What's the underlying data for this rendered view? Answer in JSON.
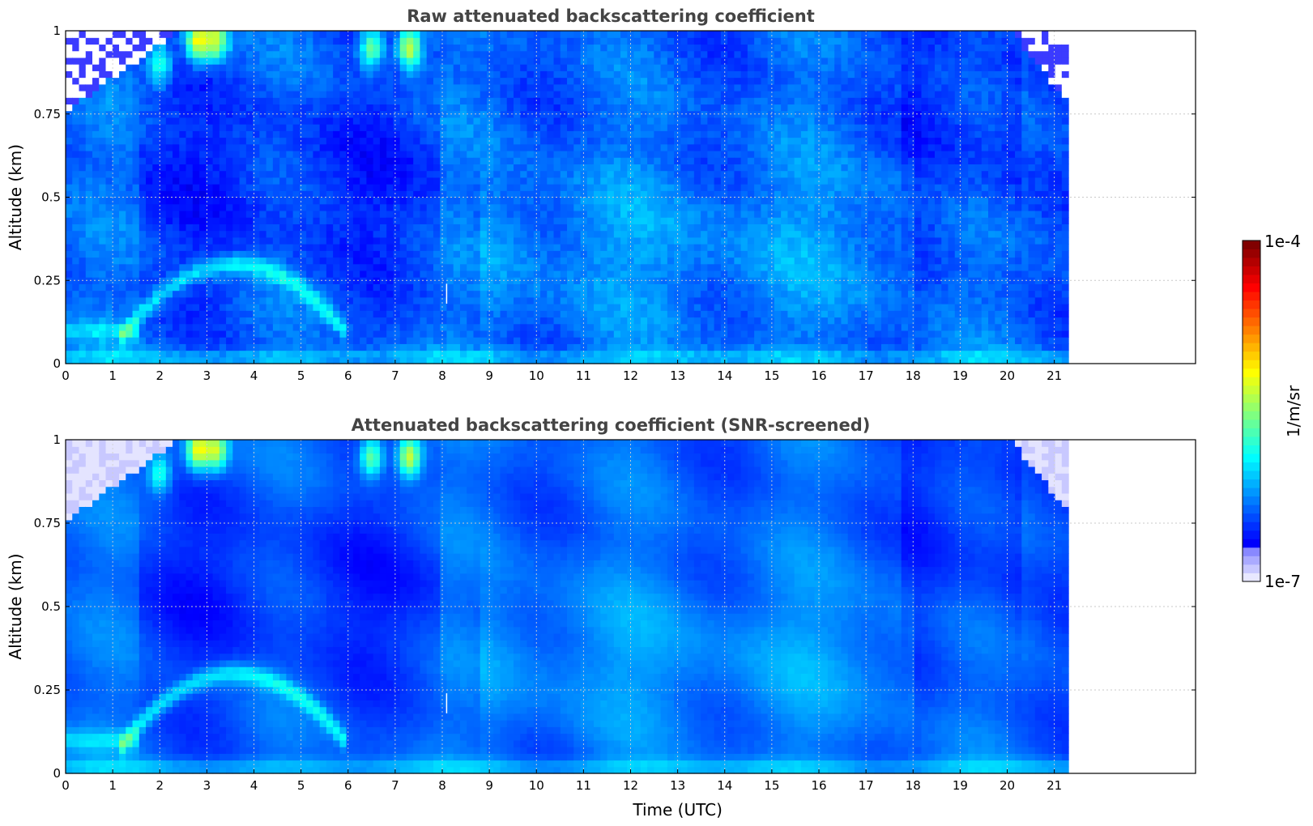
{
  "chart_data": [
    {
      "type": "heatmap",
      "title": "Raw attenuated backscattering coefficient",
      "xlabel": "",
      "ylabel": "Altitude (km)",
      "xlim": [
        0,
        24
      ],
      "ylim": [
        0,
        1
      ],
      "xticks": [
        "0",
        "1",
        "2",
        "3",
        "4",
        "5",
        "6",
        "7",
        "8",
        "9",
        "10",
        "11",
        "12",
        "13",
        "14",
        "15",
        "16",
        "17",
        "18",
        "19",
        "20",
        "21"
      ],
      "yticks": [
        "0",
        "0.25",
        "0.5",
        "0.75",
        "1"
      ],
      "data_extent": [
        0,
        21.3
      ],
      "grid": true,
      "colormap": "jet",
      "features": {
        "low_signal_top_left": true,
        "low_signal_top_right": true,
        "elevated_layer_peak_hour": 3.6,
        "elevated_layer_peak_altitude_km": 0.3,
        "strong_signal_top_hours": [
          2.7,
          3.2,
          6.5,
          7.3
        ]
      }
    },
    {
      "type": "heatmap",
      "title": "Attenuated backscattering coefficient (SNR-screened)",
      "xlabel": "Time (UTC)",
      "ylabel": "Altitude (km)",
      "xlim": [
        0,
        24
      ],
      "ylim": [
        0,
        1
      ],
      "xticks": [
        "0",
        "1",
        "2",
        "3",
        "4",
        "5",
        "6",
        "7",
        "8",
        "9",
        "10",
        "11",
        "12",
        "13",
        "14",
        "15",
        "16",
        "17",
        "18",
        "19",
        "20",
        "21"
      ],
      "yticks": [
        "0",
        "0.25",
        "0.5",
        "0.75",
        "1"
      ],
      "data_extent": [
        0,
        21.3
      ],
      "grid": true,
      "colormap": "jet",
      "features": {
        "low_signal_top_left": true,
        "low_signal_top_right": true,
        "elevated_layer_peak_hour": 3.6,
        "elevated_layer_peak_altitude_km": 0.3,
        "strong_signal_top_hours": [
          2.7,
          3.2,
          6.5,
          7.3
        ]
      }
    }
  ],
  "colorbar": {
    "label": "1/m/sr",
    "max_label": "1e-4",
    "min_label": "1e-7",
    "colors": [
      "#e8e8ff",
      "#aaaaff",
      "#0000ff",
      "#0080ff",
      "#00ffff",
      "#80ff80",
      "#ffff00",
      "#ff8000",
      "#ff0000",
      "#800000"
    ]
  }
}
